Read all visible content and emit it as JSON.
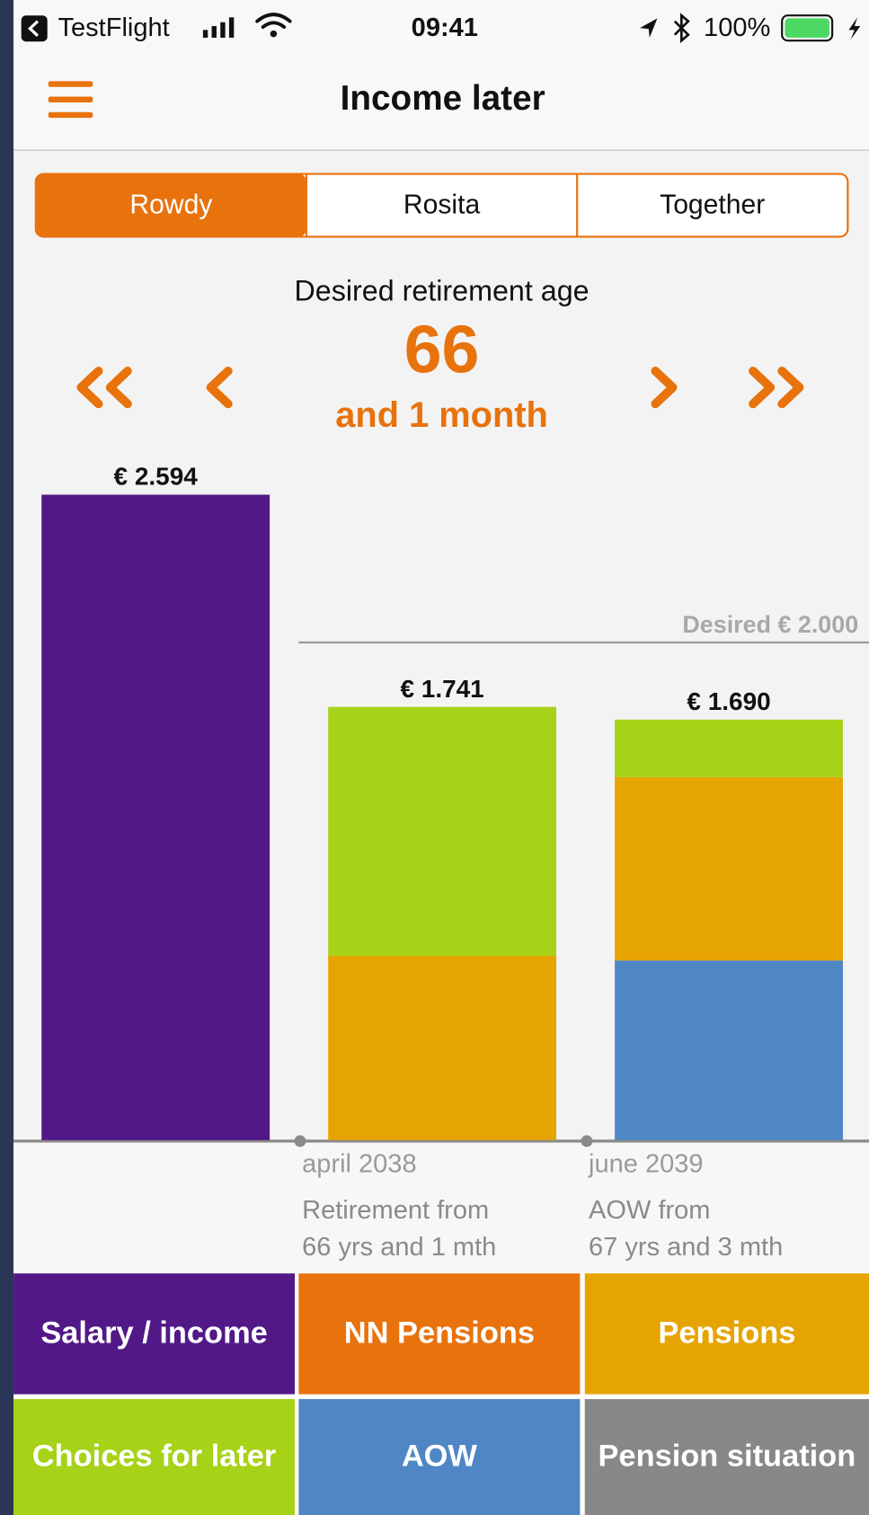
{
  "status_bar": {
    "app": "TestFlight",
    "time": "09:41",
    "battery": "100%"
  },
  "header": {
    "title": "Income later"
  },
  "tabs": [
    "Rowdy",
    "Rosita",
    "Together"
  ],
  "selected_tab": 0,
  "retirement": {
    "label": "Desired retirement age",
    "age": 66,
    "extra": "and 1 month"
  },
  "chart_data": {
    "type": "stacked_bar",
    "totals": [
      2594,
      1741,
      1690
    ],
    "value_labels": [
      "€ 2.594",
      "€ 1.741",
      "€ 1.690"
    ],
    "desired": {
      "value": 2000,
      "label": "Desired € 2.000"
    },
    "series": [
      {
        "name": "Salary / income",
        "color": "#521888",
        "values": [
          2594,
          null,
          null
        ]
      },
      {
        "name": "AOW",
        "color": "#4f86c4",
        "values": [
          null,
          null,
          722
        ]
      },
      {
        "name": "Pensions",
        "color": "#e6a400",
        "values": [
          null,
          741,
          737
        ]
      },
      {
        "name": "Choices for later",
        "color": "#a6d217",
        "values": [
          null,
          1000,
          231
        ]
      }
    ],
    "bar_labels": [
      null,
      {
        "date": "april 2038",
        "lines": [
          "Retirement from",
          "66 yrs and 1 mth"
        ]
      },
      {
        "date": "june 2039",
        "lines": [
          "AOW from",
          "67 yrs and 3 mth"
        ]
      }
    ]
  },
  "tiles": [
    {
      "name": "NN Pensions",
      "color": "#e8720c"
    },
    {
      "name": "Pension situation",
      "color": "#888888"
    }
  ]
}
